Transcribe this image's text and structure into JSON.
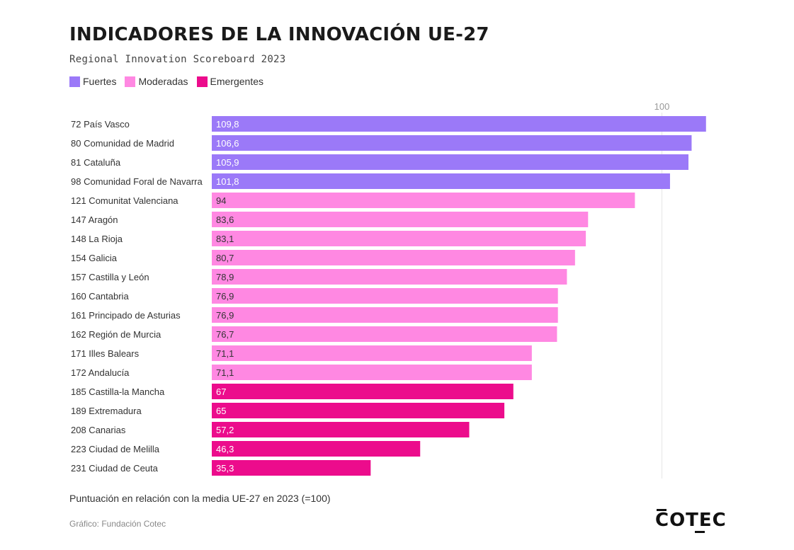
{
  "colors": {
    "fuertes": "#9b79f8",
    "moderadas": "#ff88e2",
    "emergentes": "#ec0c8c",
    "gridline": "#e6e6e6",
    "reference_label": "#999999"
  },
  "chart_data": {
    "type": "bar",
    "orientation": "horizontal",
    "title": "INDICADORES DE LA INNOVACIÓN UE-27",
    "subtitle": "Regional Innovation Scoreboard 2023",
    "legend": [
      {
        "key": "fuertes",
        "label": "Fuertes"
      },
      {
        "key": "moderadas",
        "label": "Moderadas"
      },
      {
        "key": "emergentes",
        "label": "Emergentes"
      }
    ],
    "reference_value": 100,
    "reference_label": "100",
    "xlim": [
      0,
      110
    ],
    "categories": [
      "72 País Vasco",
      "80 Comunidad de Madrid",
      "81 Cataluña",
      "98 Comunidad Foral de Navarra",
      "121 Comunitat Valenciana",
      "147 Aragón",
      "148 La Rioja",
      "154 Galicia",
      "157 Castilla y León",
      "160 Cantabria",
      "161 Principado de Asturias",
      "162 Región de Murcia",
      "171 Illes Balears",
      "172 Andalucía",
      "185 Castilla-la Mancha",
      "189 Extremadura",
      "208 Canarias",
      "223 Ciudad de Melilla",
      "231 Ciudad de Ceuta"
    ],
    "values": [
      109.8,
      106.6,
      105.9,
      101.8,
      94,
      83.6,
      83.1,
      80.7,
      78.9,
      76.9,
      76.9,
      76.7,
      71.1,
      71.1,
      67,
      65,
      57.2,
      46.3,
      35.3
    ],
    "value_labels": [
      "109,8",
      "106,6",
      "105,9",
      "101,8",
      "94",
      "83,6",
      "83,1",
      "80,7",
      "78,9",
      "76,9",
      "76,9",
      "76,7",
      "71,1",
      "71,1",
      "67",
      "65",
      "57,2",
      "46,3",
      "35,3"
    ],
    "groups": [
      "fuertes",
      "fuertes",
      "fuertes",
      "fuertes",
      "moderadas",
      "moderadas",
      "moderadas",
      "moderadas",
      "moderadas",
      "moderadas",
      "moderadas",
      "moderadas",
      "moderadas",
      "moderadas",
      "emergentes",
      "emergentes",
      "emergentes",
      "emergentes",
      "emergentes"
    ],
    "xlabel": "Puntuación en relación con la media UE-27 en 2023 (=100)"
  },
  "footer": {
    "note": "Puntuación en relación con la media UE-27 en 2023 (=100)",
    "source": "Gráfico: Fundación Cotec",
    "logo_text": "COTEC"
  }
}
